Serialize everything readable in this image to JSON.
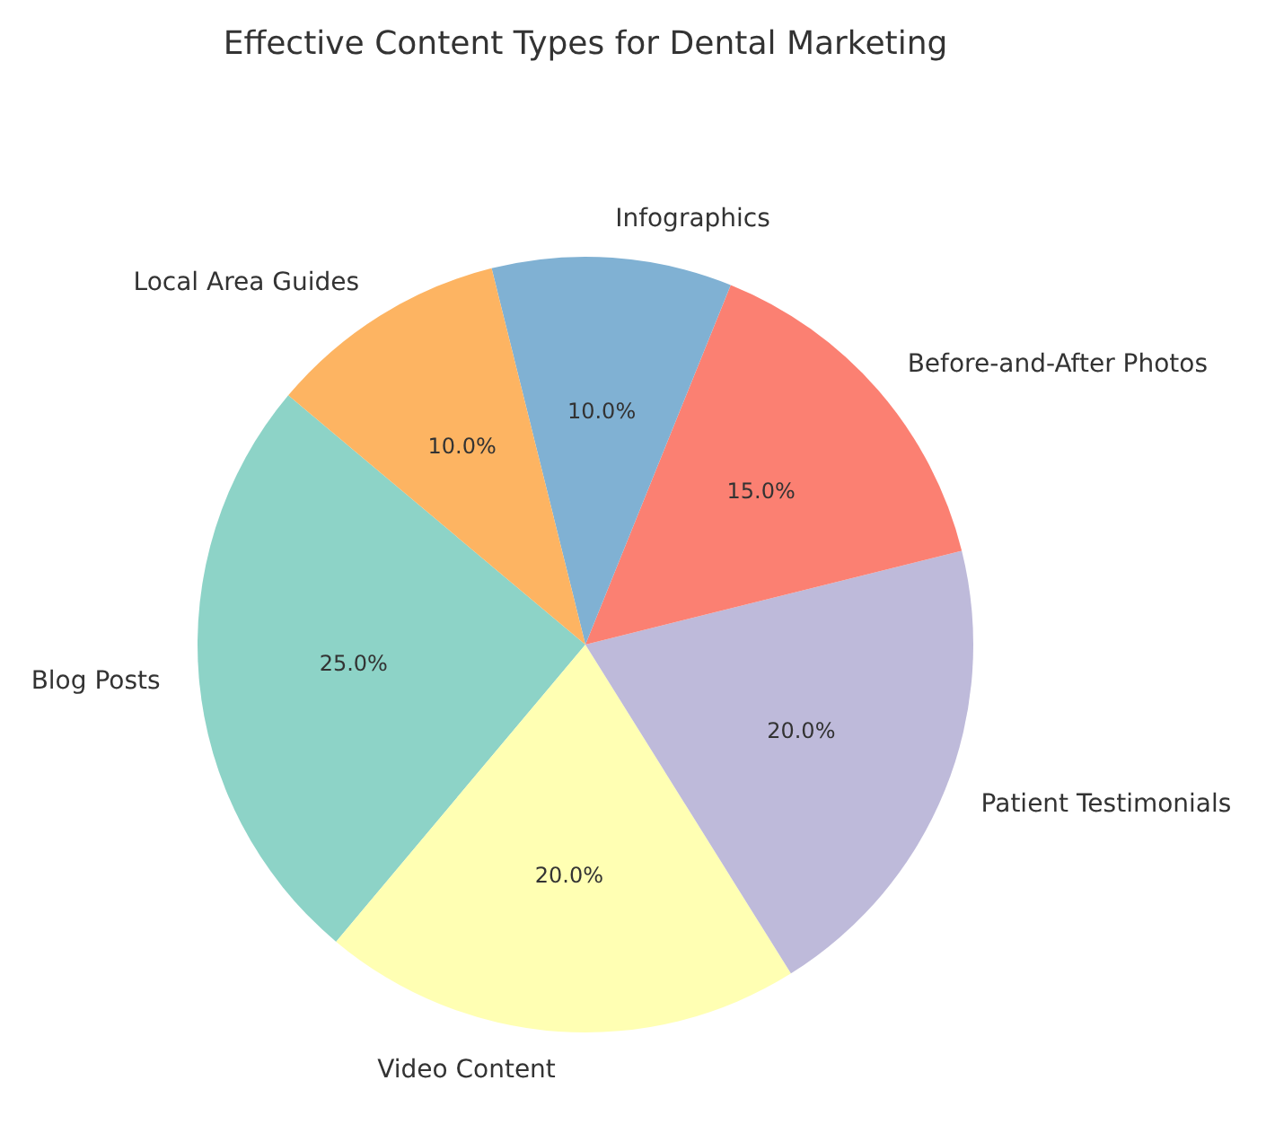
{
  "chart_data": {
    "type": "pie",
    "title": "Effective Content Types for Dental Marketing",
    "categories": [
      "Blog Posts",
      "Video Content",
      "Patient Testimonials",
      "Before-and-After Photos",
      "Infographics",
      "Local Area Guides"
    ],
    "values": [
      25,
      20,
      20,
      15,
      10,
      10
    ],
    "colors": [
      "#8dd3c7",
      "#ffffb3",
      "#bebada",
      "#fb8072",
      "#80b1d3",
      "#fdb462"
    ],
    "value_labels": [
      "25.0%",
      "20.0%",
      "20.0%",
      "15.0%",
      "10.0%",
      "10.0%"
    ]
  }
}
